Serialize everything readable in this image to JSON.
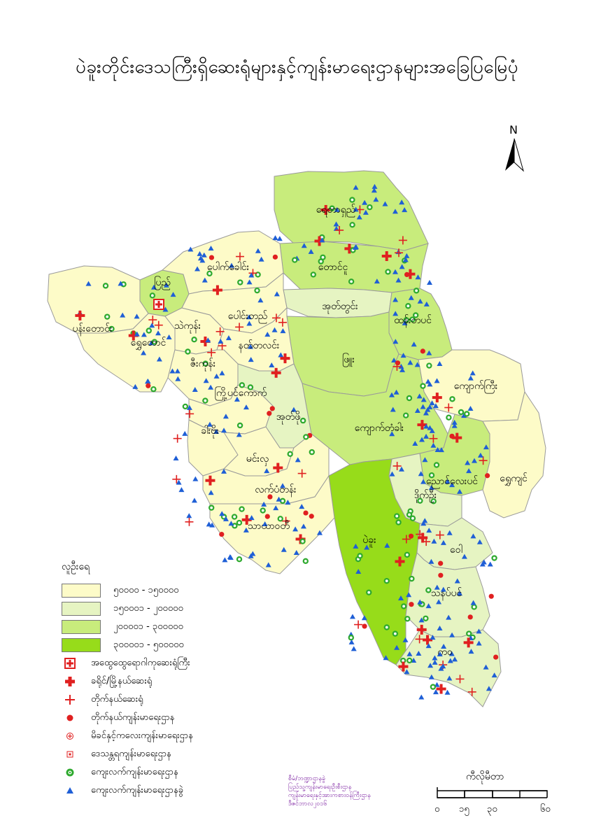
{
  "title": "ပဲခူးတိုင်းဒေသကြီးရှိဆေးရုံများနှင့်ကျန်းမာရေးဌာနများအခြေပြမြေပုံ",
  "north_label": "N",
  "colors": {
    "pop1": "#fdfbc8",
    "pop2": "#e6f4c2",
    "pop3": "#c8ec7c",
    "pop4": "#97dc1a",
    "border": "#9a9a9a",
    "red": "#e02020",
    "green": "#2faa2f",
    "blue": "#1f5fd6"
  },
  "townships": [
    {
      "name": "ရေတာရှည်",
      "fill": "pop3"
    },
    {
      "name": "တောင်ငူ",
      "fill": "pop3"
    },
    {
      "name": "အုတ်တွင်း",
      "fill": "pop2"
    },
    {
      "name": "ထန်းတပင်",
      "fill": "pop3"
    },
    {
      "name": "ဖြူး",
      "fill": "pop3"
    },
    {
      "name": "ကျောက်ကြီး",
      "fill": "pop1"
    },
    {
      "name": "ကျောက်တံခါး",
      "fill": "pop3"
    },
    {
      "name": "ညောင်လေးပင်",
      "fill": "pop3"
    },
    {
      "name": "ရွှေကျင်",
      "fill": "pop1"
    },
    {
      "name": "ဒိုက်ဦး",
      "fill": "pop2"
    },
    {
      "name": "ပဲခူး",
      "fill": "pop4"
    },
    {
      "name": "ဝေါ",
      "fill": "pop2"
    },
    {
      "name": "သနပ်ပင်",
      "fill": "pop2"
    },
    {
      "name": "ကဝ",
      "fill": "pop2"
    },
    {
      "name": "ပြည်",
      "fill": "pop3"
    },
    {
      "name": "ပေါက်ခေါင်း",
      "fill": "pop1"
    },
    {
      "name": "ပန်းတောင်း",
      "fill": "pop1"
    },
    {
      "name": "ရွှေတောင်",
      "fill": "pop1"
    },
    {
      "name": "သဲကုန်း",
      "fill": "pop1"
    },
    {
      "name": "ပေါင်းတည်",
      "fill": "pop1"
    },
    {
      "name": "နတ်တလင်း",
      "fill": "pop1"
    },
    {
      "name": "ဇီးကုန်း",
      "fill": "pop1"
    },
    {
      "name": "ကြို့ပင်ကောက်",
      "fill": "pop1"
    },
    {
      "name": "အုတ်ဖို",
      "fill": "pop2"
    },
    {
      "name": "ခါးဗိုး",
      "fill": "pop1"
    },
    {
      "name": "မင်းလှ",
      "fill": "pop1"
    },
    {
      "name": "လက်ပံတန်း",
      "fill": "pop1"
    },
    {
      "name": "သာယာဝတီ",
      "fill": "pop1"
    }
  ],
  "legend": {
    "heading": "လူဦးရေ",
    "ranges": [
      {
        "label": "၅၀၀၀၀ - ၁၅၀၀၀၀",
        "color": "#fdfbc8"
      },
      {
        "label": "၁၅၀၀၀၁ - ၂၀၀၀၀၀",
        "color": "#e6f4c2"
      },
      {
        "label": "၂၀၀၀၀၁ - ၃၀၀၀၀၀",
        "color": "#c8ec7c"
      },
      {
        "label": "၃၀၀၀၀၁ - ၅၀၀၀၀၀",
        "color": "#97dc1a"
      }
    ],
    "symbols": [
      {
        "label": "အထွေထွေရောဂါကုဆေးရုံကြီး",
        "icon": "general-hospital-icon"
      },
      {
        "label": "ခရိုင်/မြို့နယ်ဆေးရုံ",
        "icon": "district-hospital-icon"
      },
      {
        "label": "တိုက်နယ်ဆေးရုံ",
        "icon": "station-hospital-icon"
      },
      {
        "label": "တိုက်နယ်ကျန်းမာရေးဌာန",
        "icon": "station-health-center-icon"
      },
      {
        "label": "မိခင်နှင့်ကလေးကျန်းမာရေးဌာန",
        "icon": "mch-center-icon"
      },
      {
        "label": "ဒေသန္တရကျန်းမာရေးဌာန",
        "icon": "local-health-center-icon"
      },
      {
        "label": "ကျေးလက်ကျန်းမာရေးဌာန",
        "icon": "rural-health-center-icon"
      },
      {
        "label": "ကျေးလက်ကျန်းမာရေးဌာနခွဲ",
        "icon": "sub-rural-health-center-icon"
      }
    ]
  },
  "credits": [
    "စီမံ/ဘဏ္ဍာဌာနခွဲ",
    "ပြည်သူ့ကျန်းမာရေးဦးစီးဌာန",
    "ကျန်းမာရေးနှင့်အားကစားဝန်ကြီးဌာန",
    "ဒီဇင်ဘာလ၂၀၁၆"
  ],
  "scale": {
    "title": "ကီလိုမီတာ",
    "ticks": [
      "၀",
      "၁၅",
      "၃၀",
      "၆၀"
    ]
  }
}
